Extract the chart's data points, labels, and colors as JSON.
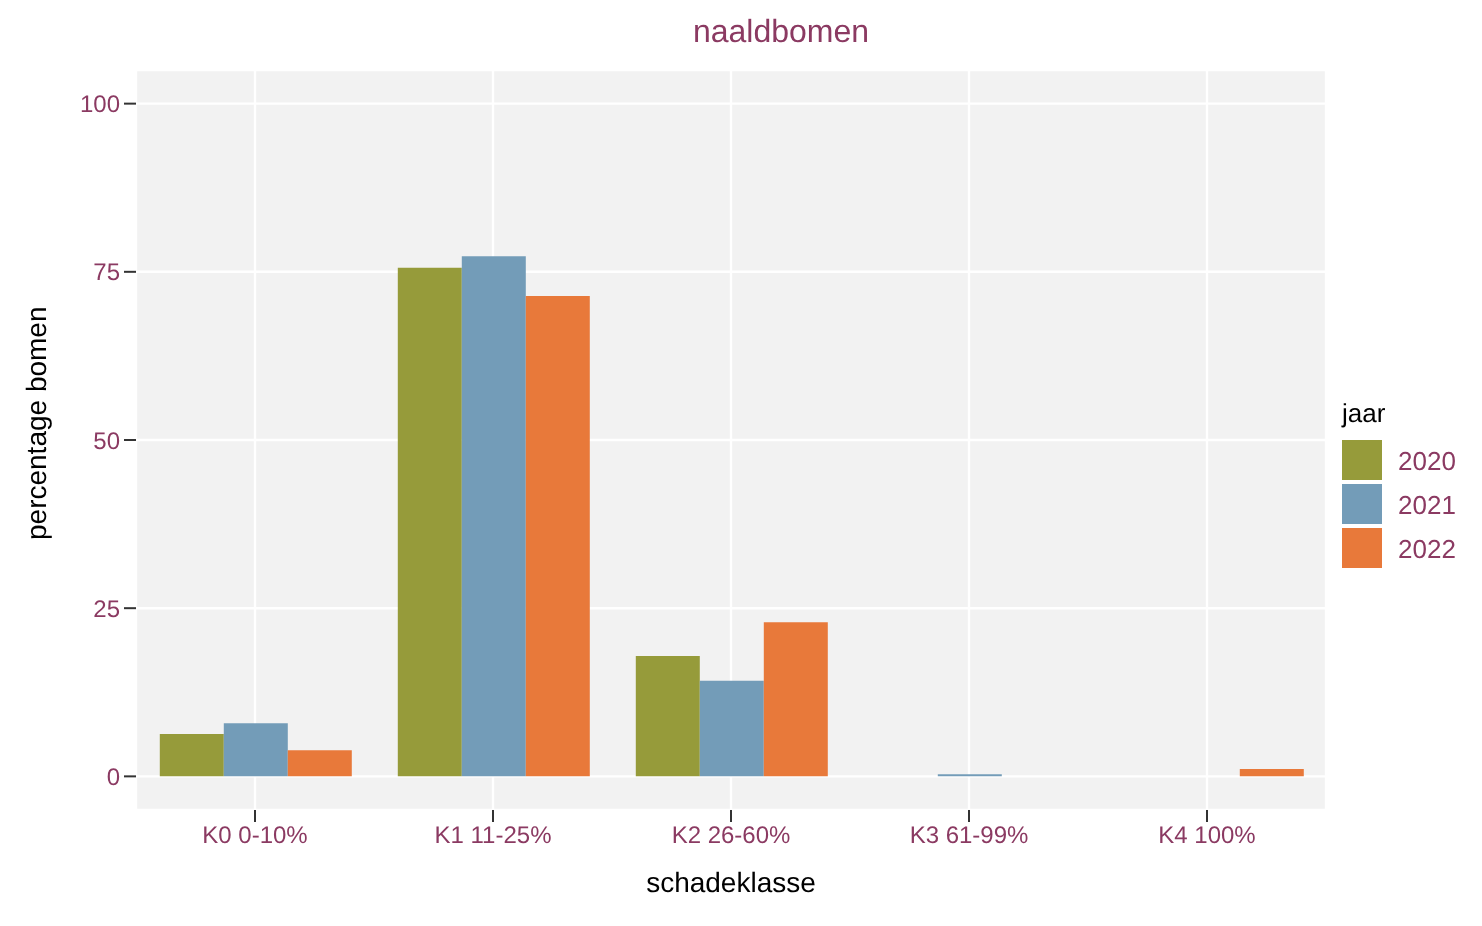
{
  "chart_data": {
    "type": "bar",
    "title": "naaldbomen",
    "xlabel": "schadeklasse",
    "ylabel": "percentage bomen",
    "legend_title": "jaar",
    "categories": [
      "K0 0-10%",
      "K1 11-25%",
      "K2 26-60%",
      "K3 61-99%",
      "K4 100%"
    ],
    "series": [
      {
        "name": "2020",
        "color": "#969b3a",
        "values": [
          6.3,
          75.6,
          17.9,
          0,
          0
        ]
      },
      {
        "name": "2021",
        "color": "#739cb8",
        "values": [
          7.9,
          77.3,
          14.2,
          0.3,
          0
        ]
      },
      {
        "name": "2022",
        "color": "#e8793a",
        "values": [
          3.9,
          71.4,
          22.9,
          0,
          1.1
        ]
      }
    ],
    "ylim": [
      -5,
      105
    ],
    "yticks": [
      0,
      25,
      50,
      75,
      100
    ],
    "grid": true,
    "legend": "right"
  }
}
